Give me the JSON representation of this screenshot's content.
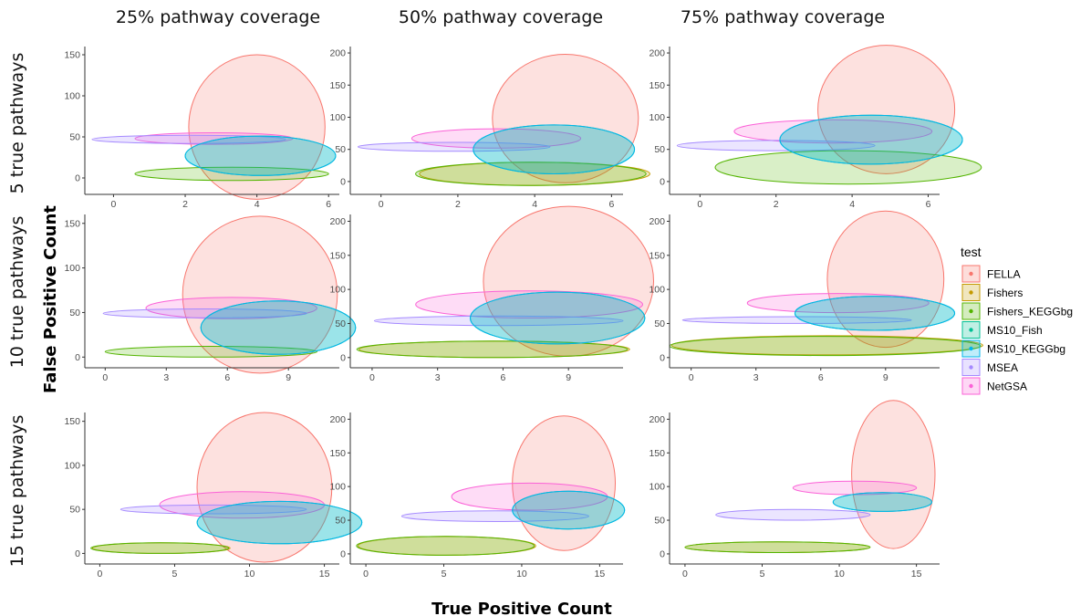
{
  "figure": {
    "col_titles": [
      "25% pathway coverage",
      "50% pathway coverage",
      "75% pathway coverage"
    ],
    "row_titles": [
      "5 true pathways",
      "10 true pathways",
      "15 true pathways"
    ],
    "xlabel": "True Positive Count",
    "ylabel": "False Positive Count"
  },
  "legend": {
    "title": "test",
    "placement": "right",
    "items": [
      {
        "name": "FELLA",
        "color": "#F8766D"
      },
      {
        "name": "Fishers",
        "color": "#C49A00"
      },
      {
        "name": "Fishers_KEGGbg",
        "color": "#53B400"
      },
      {
        "name": "MS10_Fish",
        "color": "#00C094"
      },
      {
        "name": "MS10_KEGGbg",
        "color": "#00B6EB"
      },
      {
        "name": "MSEA",
        "color": "#A58AFF"
      },
      {
        "name": "NetGSA",
        "color": "#FB61D7"
      }
    ]
  },
  "chart_data": [
    {
      "type": "scatter",
      "row": 0,
      "col": 0,
      "xlim": [
        -0.8,
        6.3
      ],
      "ylim": [
        -20,
        160
      ],
      "xticks": [
        0,
        2,
        4,
        6
      ],
      "yticks": [
        0,
        50,
        100,
        150
      ],
      "ellipses": [
        {
          "test": "FELLA",
          "cx": 4.0,
          "cy": 62,
          "rx": 1.9,
          "ry": 88
        },
        {
          "test": "NetGSA",
          "cx": 2.8,
          "cy": 48,
          "rx": 2.2,
          "ry": 7
        },
        {
          "test": "MSEA",
          "cx": 2.1,
          "cy": 47,
          "rx": 2.7,
          "ry": 5
        },
        {
          "test": "Fishers_KEGGbg",
          "cx": 3.3,
          "cy": 5,
          "rx": 2.7,
          "ry": 8
        },
        {
          "test": "MS10_Fish",
          "cx": 4.1,
          "cy": 27,
          "rx": 2.1,
          "ry": 24
        },
        {
          "test": "MS10_KEGGbg",
          "cx": 4.1,
          "cy": 27,
          "rx": 2.1,
          "ry": 24
        }
      ]
    },
    {
      "type": "scatter",
      "row": 0,
      "col": 1,
      "xlim": [
        -0.8,
        6.3
      ],
      "ylim": [
        -20,
        210
      ],
      "xticks": [
        0,
        2,
        4,
        6
      ],
      "yticks": [
        0,
        50,
        100,
        150,
        200
      ],
      "ellipses": [
        {
          "test": "FELLA",
          "cx": 4.8,
          "cy": 98,
          "rx": 1.9,
          "ry": 100
        },
        {
          "test": "NetGSA",
          "cx": 3.0,
          "cy": 67,
          "rx": 2.2,
          "ry": 15
        },
        {
          "test": "MSEA",
          "cx": 1.9,
          "cy": 54,
          "rx": 2.5,
          "ry": 7
        },
        {
          "test": "Fishers",
          "cx": 4.0,
          "cy": 12,
          "rx": 3.0,
          "ry": 18
        },
        {
          "test": "Fishers_KEGGbg",
          "cx": 3.9,
          "cy": 12,
          "rx": 3.0,
          "ry": 18
        },
        {
          "test": "MS10_Fish",
          "cx": 4.5,
          "cy": 50,
          "rx": 2.1,
          "ry": 38
        },
        {
          "test": "MS10_KEGGbg",
          "cx": 4.5,
          "cy": 50,
          "rx": 2.1,
          "ry": 38
        }
      ]
    },
    {
      "type": "scatter",
      "row": 0,
      "col": 2,
      "xlim": [
        -0.8,
        6.3
      ],
      "ylim": [
        -20,
        210
      ],
      "xticks": [
        0,
        2,
        4,
        6
      ],
      "yticks": [
        0,
        50,
        100,
        150,
        200
      ],
      "ellipses": [
        {
          "test": "FELLA",
          "cx": 4.9,
          "cy": 112,
          "rx": 1.8,
          "ry": 100
        },
        {
          "test": "NetGSA",
          "cx": 3.5,
          "cy": 78,
          "rx": 2.6,
          "ry": 18
        },
        {
          "test": "MSEA",
          "cx": 2.0,
          "cy": 56,
          "rx": 2.6,
          "ry": 8
        },
        {
          "test": "Fishers_KEGGbg",
          "cx": 3.9,
          "cy": 22,
          "rx": 3.5,
          "ry": 26
        },
        {
          "test": "MS10_Fish",
          "cx": 4.5,
          "cy": 65,
          "rx": 2.4,
          "ry": 38
        },
        {
          "test": "MS10_KEGGbg",
          "cx": 4.5,
          "cy": 65,
          "rx": 2.4,
          "ry": 38
        }
      ]
    },
    {
      "type": "scatter",
      "row": 1,
      "col": 0,
      "xlim": [
        -1,
        11.5
      ],
      "ylim": [
        -12,
        160
      ],
      "xticks": [
        0,
        3,
        6,
        9
      ],
      "yticks": [
        0,
        50,
        100,
        150
      ],
      "ellipses": [
        {
          "test": "FELLA",
          "cx": 7.6,
          "cy": 70,
          "rx": 3.8,
          "ry": 88
        },
        {
          "test": "NetGSA",
          "cx": 6.2,
          "cy": 55,
          "rx": 4.2,
          "ry": 12
        },
        {
          "test": "MSEA",
          "cx": 4.9,
          "cy": 49,
          "rx": 5.0,
          "ry": 5
        },
        {
          "test": "Fishers_KEGGbg",
          "cx": 5.2,
          "cy": 6,
          "rx": 5.2,
          "ry": 6
        },
        {
          "test": "MS10_Fish",
          "cx": 8.5,
          "cy": 33,
          "rx": 3.8,
          "ry": 30
        },
        {
          "test": "MS10_KEGGbg",
          "cx": 8.5,
          "cy": 33,
          "rx": 3.8,
          "ry": 30
        }
      ]
    },
    {
      "type": "scatter",
      "row": 1,
      "col": 1,
      "xlim": [
        -1,
        11.5
      ],
      "ylim": [
        -15,
        210
      ],
      "xticks": [
        0,
        3,
        6,
        9
      ],
      "yticks": [
        0,
        50,
        100,
        150,
        200
      ],
      "ellipses": [
        {
          "test": "FELLA",
          "cx": 9.0,
          "cy": 112,
          "rx": 3.9,
          "ry": 110
        },
        {
          "test": "NetGSA",
          "cx": 7.2,
          "cy": 78,
          "rx": 5.2,
          "ry": 20
        },
        {
          "test": "MSEA",
          "cx": 5.8,
          "cy": 54,
          "rx": 5.7,
          "ry": 7
        },
        {
          "test": "Fishers",
          "cx": 5.6,
          "cy": 12,
          "rx": 6.2,
          "ry": 12
        },
        {
          "test": "Fishers_KEGGbg",
          "cx": 5.5,
          "cy": 12,
          "rx": 6.2,
          "ry": 12
        },
        {
          "test": "MS10_Fish",
          "cx": 8.5,
          "cy": 58,
          "rx": 4.0,
          "ry": 38
        },
        {
          "test": "MS10_KEGGbg",
          "cx": 8.5,
          "cy": 58,
          "rx": 4.0,
          "ry": 38
        }
      ]
    },
    {
      "type": "scatter",
      "row": 1,
      "col": 2,
      "xlim": [
        -1,
        11.5
      ],
      "ylim": [
        -15,
        210
      ],
      "xticks": [
        0,
        3,
        6,
        9
      ],
      "yticks": [
        0,
        50,
        100,
        150,
        200
      ],
      "ellipses": [
        {
          "test": "FELLA",
          "cx": 9.0,
          "cy": 115,
          "rx": 2.7,
          "ry": 100
        },
        {
          "test": "NetGSA",
          "cx": 6.8,
          "cy": 80,
          "rx": 4.2,
          "ry": 14
        },
        {
          "test": "MSEA",
          "cx": 4.9,
          "cy": 55,
          "rx": 5.3,
          "ry": 5
        },
        {
          "test": "Fishers",
          "cx": 6.3,
          "cy": 18,
          "rx": 7.2,
          "ry": 14
        },
        {
          "test": "Fishers_KEGGbg",
          "cx": 6.2,
          "cy": 17,
          "rx": 7.2,
          "ry": 14
        },
        {
          "test": "MS10_Fish",
          "cx": 8.5,
          "cy": 65,
          "rx": 3.7,
          "ry": 25
        },
        {
          "test": "MS10_KEGGbg",
          "cx": 8.5,
          "cy": 65,
          "rx": 3.7,
          "ry": 25
        }
      ]
    },
    {
      "type": "scatter",
      "row": 2,
      "col": 0,
      "xlim": [
        -1,
        16
      ],
      "ylim": [
        -12,
        160
      ],
      "xticks": [
        0,
        5,
        10,
        15
      ],
      "yticks": [
        0,
        50,
        100,
        150
      ],
      "ellipses": [
        {
          "test": "FELLA",
          "cx": 11.0,
          "cy": 75,
          "rx": 4.5,
          "ry": 85
        },
        {
          "test": "NetGSA",
          "cx": 9.5,
          "cy": 55,
          "rx": 5.5,
          "ry": 15
        },
        {
          "test": "MSEA",
          "cx": 7.6,
          "cy": 50,
          "rx": 6.2,
          "ry": 5
        },
        {
          "test": "Fishers",
          "cx": 4.1,
          "cy": 6,
          "rx": 4.6,
          "ry": 6
        },
        {
          "test": "Fishers_KEGGbg",
          "cx": 4.0,
          "cy": 6,
          "rx": 4.6,
          "ry": 6
        },
        {
          "test": "MS10_Fish",
          "cx": 12.0,
          "cy": 35,
          "rx": 5.5,
          "ry": 24
        },
        {
          "test": "MS10_KEGGbg",
          "cx": 12.0,
          "cy": 35,
          "rx": 5.5,
          "ry": 24
        }
      ]
    },
    {
      "type": "scatter",
      "row": 2,
      "col": 1,
      "xlim": [
        -1,
        16.5
      ],
      "ylim": [
        -15,
        210
      ],
      "xticks": [
        0,
        5,
        10,
        15
      ],
      "yticks": [
        0,
        50,
        100,
        150,
        200
      ],
      "ellipses": [
        {
          "test": "FELLA",
          "cx": 12.7,
          "cy": 105,
          "rx": 3.3,
          "ry": 100
        },
        {
          "test": "NetGSA",
          "cx": 10.5,
          "cy": 85,
          "rx": 5.0,
          "ry": 20
        },
        {
          "test": "MSEA",
          "cx": 8.3,
          "cy": 56,
          "rx": 6.0,
          "ry": 8
        },
        {
          "test": "Fishers",
          "cx": 5.2,
          "cy": 12,
          "rx": 5.7,
          "ry": 14
        },
        {
          "test": "Fishers_KEGGbg",
          "cx": 5.1,
          "cy": 12,
          "rx": 5.7,
          "ry": 14
        },
        {
          "test": "MS10_Fish",
          "cx": 13.0,
          "cy": 65,
          "rx": 3.6,
          "ry": 28
        },
        {
          "test": "MS10_KEGGbg",
          "cx": 13.0,
          "cy": 65,
          "rx": 3.6,
          "ry": 28
        }
      ]
    },
    {
      "type": "scatter",
      "row": 2,
      "col": 2,
      "xlim": [
        -1,
        16.5
      ],
      "ylim": [
        -15,
        210
      ],
      "xticks": [
        0,
        5,
        10,
        15
      ],
      "yticks": [
        0,
        50,
        100,
        150,
        200
      ],
      "ellipses": [
        {
          "test": "FELLA",
          "cx": 13.5,
          "cy": 118,
          "rx": 2.7,
          "ry": 110
        },
        {
          "test": "NetGSA",
          "cx": 11.0,
          "cy": 98,
          "rx": 4.0,
          "ry": 10
        },
        {
          "test": "MSEA",
          "cx": 7.0,
          "cy": 58,
          "rx": 5.0,
          "ry": 8
        },
        {
          "test": "Fishers",
          "cx": 6.0,
          "cy": 10,
          "rx": 6.0,
          "ry": 8
        },
        {
          "test": "Fishers_KEGGbg",
          "cx": 6.0,
          "cy": 10,
          "rx": 6.0,
          "ry": 8
        },
        {
          "test": "MS10_Fish",
          "cx": 12.8,
          "cy": 77,
          "rx": 3.2,
          "ry": 14
        },
        {
          "test": "MS10_KEGGbg",
          "cx": 12.8,
          "cy": 77,
          "rx": 3.2,
          "ry": 14
        }
      ]
    }
  ]
}
